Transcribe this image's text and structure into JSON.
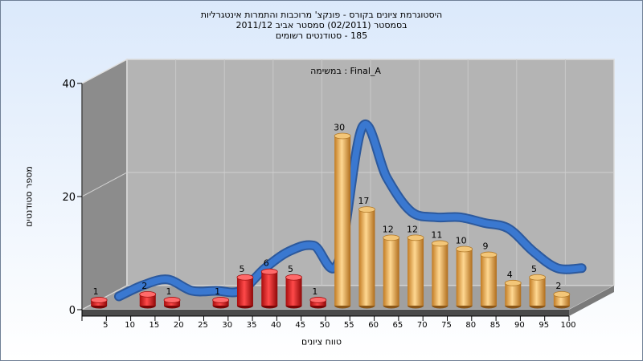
{
  "titles": [
    "היסטוגרמת ציונים בקורס - פונקצ' מרוכבות והתמרות אינטגרליות",
    "בסמסטר  (02/2011)  סמסטר אביב 2011/12",
    "185 - סטודנטים רשומים"
  ],
  "chart_data": {
    "type": "bar",
    "title": "היסטוגרמת ציונים בקורס - פונקצ' מרוכבות והתמרות אינטגרליות",
    "subtitle": "בסמסטר  (02/2011)  סמסטר אביב 2011/12 | 185 - סטודנטים רשומים",
    "annotation": "במשימה : Final_A",
    "xlabel": "טווח ציונים",
    "ylabel": "מספר סטודנטים",
    "ylim": [
      0,
      40
    ],
    "yticks": [
      0,
      20,
      40
    ],
    "categories": [
      "5",
      "10",
      "15",
      "20",
      "25",
      "30",
      "35",
      "40",
      "45",
      "50",
      "55",
      "60",
      "65",
      "70",
      "75",
      "80",
      "85",
      "90",
      "95",
      "100"
    ],
    "values": [
      1,
      null,
      2,
      1,
      null,
      1,
      5,
      6,
      5,
      1,
      30,
      17,
      12,
      12,
      11,
      10,
      9,
      4,
      5,
      2
    ],
    "fail_color": "#e01e1e",
    "pass_color": "#e9a846",
    "pass_from": "55",
    "curve_color": "#3a78d0",
    "curve_values": [
      0,
      2,
      3,
      1,
      1,
      1,
      5,
      8,
      9,
      6,
      30,
      21,
      15,
      14,
      14,
      13,
      12,
      8,
      5,
      5
    ],
    "grid": true
  }
}
